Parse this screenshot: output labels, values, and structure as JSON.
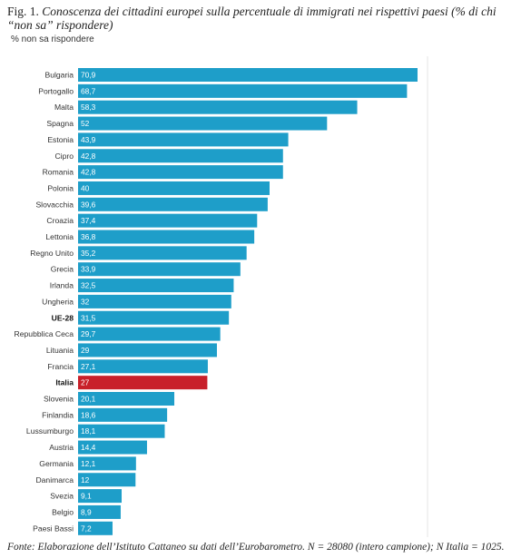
{
  "figure": {
    "title_lead": "Fig. 1. ",
    "title_rest": "Conoscenza dei cittadini europei sulla percentuale di immigrati nei rispettivi paesi (% di chi",
    "title_line2": "“non sa” rispondere)",
    "footer": "Fonte: Elaborazione dell’Istituto Cattaneo su dati dell’Eurobarometro. N = 28080 (intero campione); N Italia = 1025."
  },
  "colors": {
    "bar": "#1e9ec9",
    "highlight": "#c8202a",
    "gridline": "#e6e6e6"
  },
  "chart_data": {
    "type": "bar",
    "orientation": "horizontal",
    "ylabel": "% non sa rispondere",
    "categories": [
      "Bulgaria",
      "Portogallo",
      "Malta",
      "Spagna",
      "Estonia",
      "Cipro",
      "Romania",
      "Polonia",
      "Slovacchia",
      "Croazia",
      "Lettonia",
      "Regno Unito",
      "Grecia",
      "Irlanda",
      "Ungheria",
      "UE-28",
      "Repubblica Ceca",
      "Lituania",
      "Francia",
      "Italia",
      "Slovenia",
      "Finlandia",
      "Lussumburgo",
      "Austria",
      "Germania",
      "Danimarca",
      "Svezia",
      "Belgio",
      "Paesi Bassi"
    ],
    "value_labels": [
      "70,9",
      "68,7",
      "58,3",
      "52",
      "43,9",
      "42,8",
      "42,8",
      "40",
      "39,6",
      "37,4",
      "36,8",
      "35,2",
      "33,9",
      "32,5",
      "32",
      "31,5",
      "29,7",
      "29",
      "27,1",
      "27",
      "20,1",
      "18,6",
      "18,1",
      "14,4",
      "12,1",
      "12",
      "9,1",
      "8,9",
      "7,2"
    ],
    "values": [
      70.9,
      68.7,
      58.3,
      52,
      43.9,
      42.8,
      42.8,
      40,
      39.6,
      37.4,
      36.8,
      35.2,
      33.9,
      32.5,
      32,
      31.5,
      29.7,
      29,
      27.1,
      27,
      20.1,
      18.6,
      18.1,
      14.4,
      12.1,
      12,
      9.1,
      8.9,
      7.2
    ],
    "bold_categories": [
      "UE-28",
      "Italia"
    ],
    "highlight_category": "Italia",
    "xlim": [
      0,
      75
    ]
  }
}
